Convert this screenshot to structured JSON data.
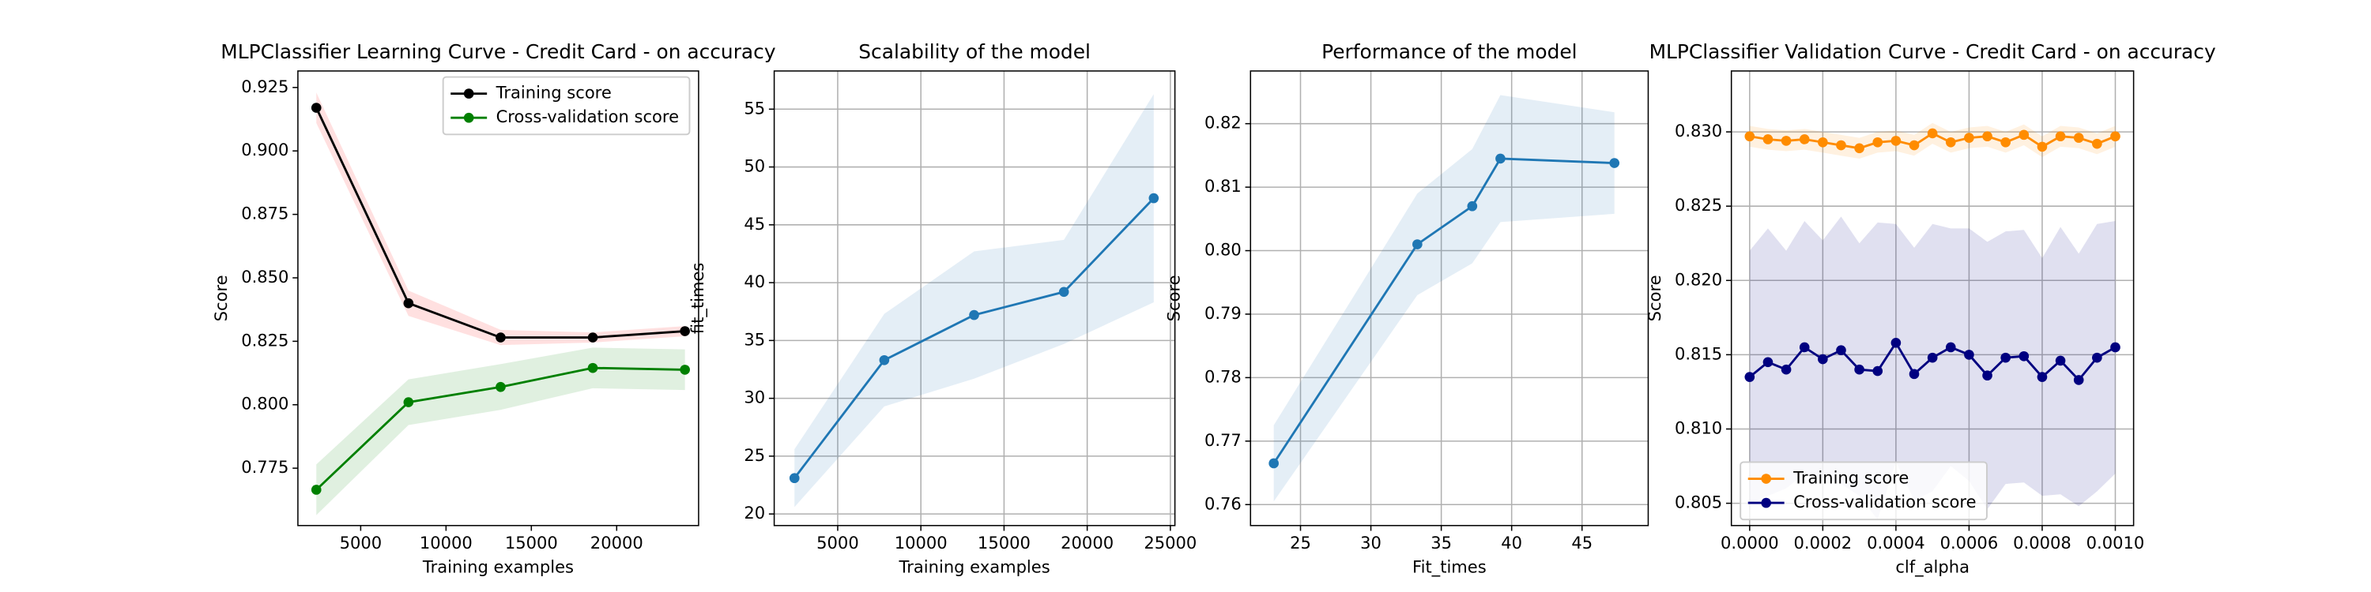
{
  "chart_data": [
    {
      "type": "line",
      "title": "MLPClassifier Learning Curve - Credit Card - on accuracy",
      "x_label": "Training examples",
      "y_label": "Score",
      "x": [
        2400,
        7800,
        13200,
        18600,
        24000
      ],
      "series": [
        {
          "name": "Training score",
          "color": "#000000",
          "band_color": "#ff0000",
          "values": [
            0.917,
            0.84,
            0.8265,
            0.8265,
            0.829
          ],
          "std": [
            0.006,
            0.005,
            0.003,
            0.002,
            0.002
          ]
        },
        {
          "name": "Cross-validation score",
          "color": "#008000",
          "band_color": "#008000",
          "values": [
            0.7665,
            0.801,
            0.807,
            0.8145,
            0.8138
          ],
          "std": [
            0.01,
            0.009,
            0.009,
            0.008,
            0.008
          ]
        }
      ],
      "xlim": [
        1320,
        24800
      ],
      "ylim": [
        0.7524,
        0.9315
      ],
      "xticks": [
        5000,
        10000,
        15000,
        20000
      ],
      "yticks": [
        0.775,
        {
          "value": 0.8,
          "label": "0.800"
        },
        0.825,
        {
          "value": 0.85,
          "label": "0.850"
        },
        0.875,
        {
          "value": 0.9,
          "label": "0.900"
        },
        0.925
      ],
      "grid": false,
      "legend": "upper right"
    },
    {
      "type": "line",
      "title": "Scalability of the model",
      "x_label": "Training examples",
      "y_label": "fit_times",
      "x": [
        2400,
        7800,
        13200,
        18600,
        24000
      ],
      "series": [
        {
          "color": "#1f77b4",
          "band_color": "#1f77b4",
          "values": [
            23.1,
            33.3,
            37.2,
            39.2,
            47.3
          ],
          "std": [
            2.5,
            4.0,
            5.5,
            4.5,
            9.0
          ]
        }
      ],
      "xlim": [
        1182,
        25273
      ],
      "ylim": [
        19,
        58.3
      ],
      "xticks": [
        5000,
        10000,
        15000,
        20000,
        25000
      ],
      "yticks": [
        20,
        25,
        30,
        35,
        40,
        45,
        50,
        55
      ],
      "grid": true
    },
    {
      "type": "line",
      "title": "Performance of the model",
      "x_label": "Fit_times",
      "y_label": "Score",
      "x": [
        23.1,
        33.3,
        37.2,
        39.2,
        47.3
      ],
      "series": [
        {
          "color": "#1f77b4",
          "band_color": "#1f77b4",
          "values": [
            0.7665,
            0.801,
            0.807,
            0.8145,
            0.8138
          ],
          "std": [
            0.006,
            0.008,
            0.009,
            0.01,
            0.008
          ]
        }
      ],
      "xlim": [
        21.45,
        49.7
      ],
      "ylim": [
        0.7567,
        0.8283
      ],
      "xticks": [
        25,
        30,
        35,
        40,
        45
      ],
      "yticks": [
        0.76,
        0.77,
        0.78,
        0.79,
        {
          "value": 0.8,
          "label": "0.80"
        },
        0.81,
        0.82
      ],
      "grid": true
    },
    {
      "type": "line",
      "title": "MLPClassifier Validation Curve - Credit Card - on accuracy",
      "x_label": "clf_alpha",
      "y_label": "Score",
      "x": [
        0,
        5e-05,
        0.0001,
        0.00015,
        0.0002,
        0.00025,
        0.0003,
        0.00035,
        0.0004,
        0.00045,
        0.0005,
        0.00055,
        0.0006,
        0.00065,
        0.0007,
        0.00075,
        0.0008,
        0.00085,
        0.0009,
        0.00095,
        0.001
      ],
      "series": [
        {
          "name": "Training score",
          "color": "#ff8c00",
          "band_color": "#ff8c00",
          "values": [
            0.8297,
            0.8295,
            0.8294,
            0.8295,
            0.8293,
            0.8291,
            0.8289,
            0.8293,
            0.8294,
            0.8291,
            0.8299,
            0.8293,
            0.8296,
            0.8297,
            0.8293,
            0.8298,
            0.829,
            0.8297,
            0.8296,
            0.8292,
            0.8297
          ],
          "std": [
            0.0007,
            0.0007,
            0.0007,
            0.0007,
            0.0007,
            0.0007,
            0.0007,
            0.0007,
            0.0007,
            0.0007,
            0.0007,
            0.0007,
            0.0007,
            0.0007,
            0.0007,
            0.0007,
            0.0007,
            0.0007,
            0.0007,
            0.0007,
            0.0007
          ]
        },
        {
          "name": "Cross-validation score",
          "color": "#000080",
          "band_color": "#000080",
          "values": [
            0.8135,
            0.8145,
            0.814,
            0.8155,
            0.8147,
            0.8153,
            0.814,
            0.8139,
            0.8158,
            0.8137,
            0.8148,
            0.8155,
            0.815,
            0.8136,
            0.8148,
            0.8149,
            0.8135,
            0.8146,
            0.8133,
            0.8148,
            0.8155
          ],
          "std": [
            0.0085,
            0.009,
            0.008,
            0.0085,
            0.008,
            0.009,
            0.0085,
            0.01,
            0.008,
            0.0085,
            0.009,
            0.008,
            0.0085,
            0.009,
            0.0085,
            0.0085,
            0.008,
            0.009,
            0.0085,
            0.009,
            0.0085
          ]
        }
      ],
      "xlim": [
        -5e-05,
        0.00105
      ],
      "ylim": [
        0.8035,
        0.8341
      ],
      "xticks": [
        {
          "value": 0,
          "label": "0.0000"
        },
        {
          "value": 0.0002,
          "label": "0.0002"
        },
        {
          "value": 0.0004,
          "label": "0.0004"
        },
        {
          "value": 0.0006,
          "label": "0.0006"
        },
        {
          "value": 0.0008,
          "label": "0.0008"
        },
        {
          "value": 0.001,
          "label": "0.0010"
        }
      ],
      "yticks": [
        0.805,
        {
          "value": 0.81,
          "label": "0.810"
        },
        0.815,
        {
          "value": 0.82,
          "label": "0.820"
        },
        0.825,
        {
          "value": 0.83,
          "label": "0.830"
        }
      ],
      "grid": true,
      "legend": "lower left"
    }
  ]
}
